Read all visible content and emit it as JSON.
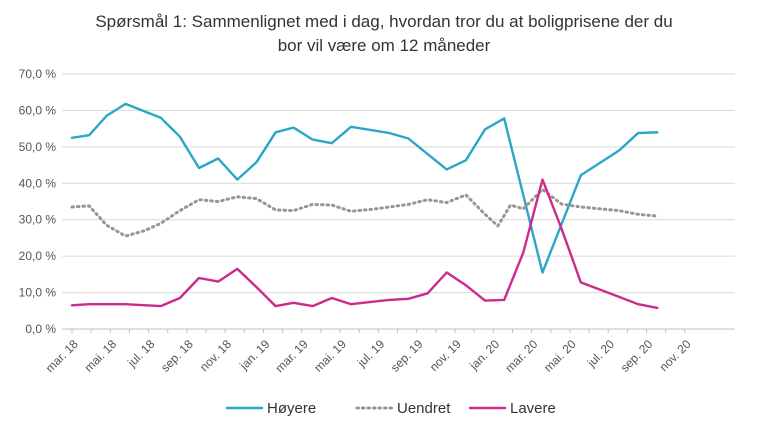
{
  "chart_data": {
    "type": "line",
    "title_lines": [
      "Spørsmål 1: Sammenlignet  med i dag, hvordan tror du at boligprisene  der du",
      "bor vil være om 12 måneder"
    ],
    "xlabel": "",
    "ylabel": "",
    "ylim": [
      0,
      70
    ],
    "y_ticks": [
      0,
      10,
      20,
      30,
      40,
      50,
      60,
      70
    ],
    "y_tick_labels": [
      "0,0 %",
      "10,0 %",
      "20,0 %",
      "30,0 %",
      "40,0 %",
      "50,0 %",
      "60,0 %",
      "70,0 %"
    ],
    "x_tick_labels": [
      "mar. 18",
      "mai. 18",
      "jul. 18",
      "sep. 18",
      "nov. 18",
      "jan. 19",
      "mar. 19",
      "mai. 19",
      "jul. 19",
      "sep. 19",
      "nov. 19",
      "jan. 20",
      "mar. 20",
      "mai. 20",
      "jul. 20",
      "sep. 20",
      "nov. 20"
    ],
    "x_months": [
      "2018-03",
      "2018-04",
      "2018-05",
      "2018-06",
      "2018-07",
      "2018-08",
      "2018-09",
      "2018-10",
      "2018-11",
      "2018-12",
      "2019-01",
      "2019-02",
      "2019-03",
      "2019-04",
      "2019-05",
      "2019-06",
      "2019-07",
      "2019-08",
      "2019-09",
      "2019-10",
      "2019-11",
      "2019-12",
      "2020-01",
      "2020-02",
      "2020-03",
      "2020-04",
      "2020-05",
      "2020-06",
      "2020-07",
      "2020-08",
      "2020-09",
      "2020-10",
      "2020-11"
    ],
    "grid": "horizontal",
    "legend_position": "bottom",
    "series": [
      {
        "name": "Høyere",
        "color": "#2aa6c8",
        "dash": "solid",
        "points": [
          [
            "2018-03-01",
            52.5
          ],
          [
            "2018-03-28",
            53.2
          ],
          [
            "2018-04-25",
            58.5
          ],
          [
            "2018-05-25",
            61.8
          ],
          [
            "2018-07-20",
            58.0
          ],
          [
            "2018-08-20",
            52.8
          ],
          [
            "2018-09-20",
            44.2
          ],
          [
            "2018-10-20",
            46.8
          ],
          [
            "2018-11-20",
            41.0
          ],
          [
            "2018-12-20",
            45.8
          ],
          [
            "2019-01-20",
            54.0
          ],
          [
            "2019-02-18",
            55.3
          ],
          [
            "2019-03-18",
            52.0
          ],
          [
            "2019-04-18",
            51.0
          ],
          [
            "2019-05-18",
            55.5
          ],
          [
            "2019-07-18",
            53.8
          ],
          [
            "2019-08-18",
            52.3
          ],
          [
            "2019-09-18",
            48.0
          ],
          [
            "2019-10-18",
            43.8
          ],
          [
            "2019-11-18",
            46.3
          ],
          [
            "2019-12-18",
            54.8
          ],
          [
            "2020-01-18",
            57.8
          ],
          [
            "2020-03-18",
            15.5
          ],
          [
            "2020-05-18",
            42.2
          ],
          [
            "2020-07-18",
            49.0
          ],
          [
            "2020-08-18",
            53.8
          ],
          [
            "2020-09-18",
            54.0
          ]
        ]
      },
      {
        "name": "Uendret",
        "color": "#9c948e",
        "dash": "dotted",
        "points": [
          [
            "2018-03-01",
            33.5
          ],
          [
            "2018-03-28",
            33.8
          ],
          [
            "2018-04-25",
            28.5
          ],
          [
            "2018-05-25",
            25.5
          ],
          [
            "2018-06-25",
            27.0
          ],
          [
            "2018-07-20",
            29.0
          ],
          [
            "2018-08-20",
            32.5
          ],
          [
            "2018-09-20",
            35.5
          ],
          [
            "2018-10-20",
            35.0
          ],
          [
            "2018-11-20",
            36.3
          ],
          [
            "2018-12-20",
            35.8
          ],
          [
            "2019-01-20",
            32.7
          ],
          [
            "2019-02-18",
            32.5
          ],
          [
            "2019-03-18",
            34.2
          ],
          [
            "2019-04-18",
            34.0
          ],
          [
            "2019-05-18",
            32.3
          ],
          [
            "2019-06-18",
            32.8
          ],
          [
            "2019-07-18",
            33.5
          ],
          [
            "2019-08-18",
            34.2
          ],
          [
            "2019-09-18",
            35.5
          ],
          [
            "2019-10-18",
            34.7
          ],
          [
            "2019-11-18",
            36.8
          ],
          [
            "2019-12-18",
            31.5
          ],
          [
            "2020-01-08",
            28.3
          ],
          [
            "2020-01-28",
            34.0
          ],
          [
            "2020-02-18",
            33.0
          ],
          [
            "2020-03-18",
            38.3
          ],
          [
            "2020-04-18",
            34.3
          ],
          [
            "2020-05-18",
            33.5
          ],
          [
            "2020-06-18",
            33.0
          ],
          [
            "2020-07-18",
            32.5
          ],
          [
            "2020-08-18",
            31.5
          ],
          [
            "2020-09-18",
            31.0
          ]
        ]
      },
      {
        "name": "Lavere",
        "color": "#cc2a8c",
        "dash": "solid",
        "points": [
          [
            "2018-03-01",
            6.5
          ],
          [
            "2018-03-28",
            6.8
          ],
          [
            "2018-04-25",
            6.8
          ],
          [
            "2018-05-25",
            6.8
          ],
          [
            "2018-07-20",
            6.3
          ],
          [
            "2018-08-20",
            8.5
          ],
          [
            "2018-09-20",
            14.0
          ],
          [
            "2018-10-20",
            13.0
          ],
          [
            "2018-11-20",
            16.5
          ],
          [
            "2018-12-20",
            11.5
          ],
          [
            "2019-01-20",
            6.3
          ],
          [
            "2019-02-18",
            7.2
          ],
          [
            "2019-03-18",
            6.3
          ],
          [
            "2019-04-18",
            8.5
          ],
          [
            "2019-05-18",
            6.8
          ],
          [
            "2019-07-18",
            8.0
          ],
          [
            "2019-08-18",
            8.3
          ],
          [
            "2019-09-18",
            9.8
          ],
          [
            "2019-10-18",
            15.5
          ],
          [
            "2019-11-18",
            12.0
          ],
          [
            "2019-12-18",
            7.8
          ],
          [
            "2020-01-18",
            8.0
          ],
          [
            "2020-02-18",
            21.0
          ],
          [
            "2020-03-18",
            41.0
          ],
          [
            "2020-04-18",
            27.5
          ],
          [
            "2020-05-18",
            12.8
          ],
          [
            "2020-07-18",
            8.8
          ],
          [
            "2020-08-18",
            6.8
          ],
          [
            "2020-09-18",
            5.8
          ]
        ]
      }
    ]
  }
}
